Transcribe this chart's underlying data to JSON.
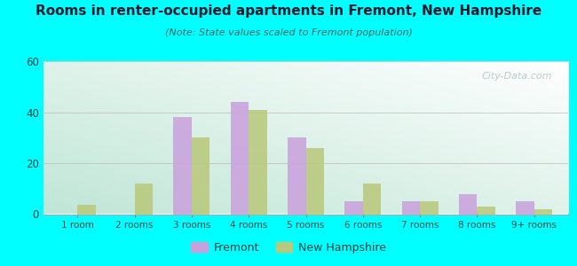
{
  "title": "Rooms in renter-occupied apartments in Fremont, New Hampshire",
  "subtitle": "(Note: State values scaled to Fremont population)",
  "categories": [
    "1 room",
    "2 rooms",
    "3 rooms",
    "4 rooms",
    "5 rooms",
    "6 rooms",
    "7 rooms",
    "8 rooms",
    "9+ rooms"
  ],
  "fremont_values": [
    0,
    0,
    38,
    44,
    30,
    5,
    5,
    8,
    5
  ],
  "nh_values": [
    3.5,
    12,
    30,
    41,
    26,
    12,
    5,
    3,
    2
  ],
  "fremont_color": "#c9a0dc",
  "nh_color": "#b8c87a",
  "ylim": [
    0,
    60
  ],
  "yticks": [
    0,
    20,
    40,
    60
  ],
  "background_outer": "#00ffff",
  "title_color": "#1a1a2e",
  "subtitle_color": "#336666",
  "watermark": "City-Data.com",
  "legend_fremont": "Fremont",
  "legend_nh": "New Hampshire",
  "bar_width": 0.32,
  "grad_top_left": "#c8eedd",
  "grad_bot_left": "#b0ddc0",
  "grad_top_right": "#f0f8f4",
  "grad_bot_right": "#e8f4ee"
}
